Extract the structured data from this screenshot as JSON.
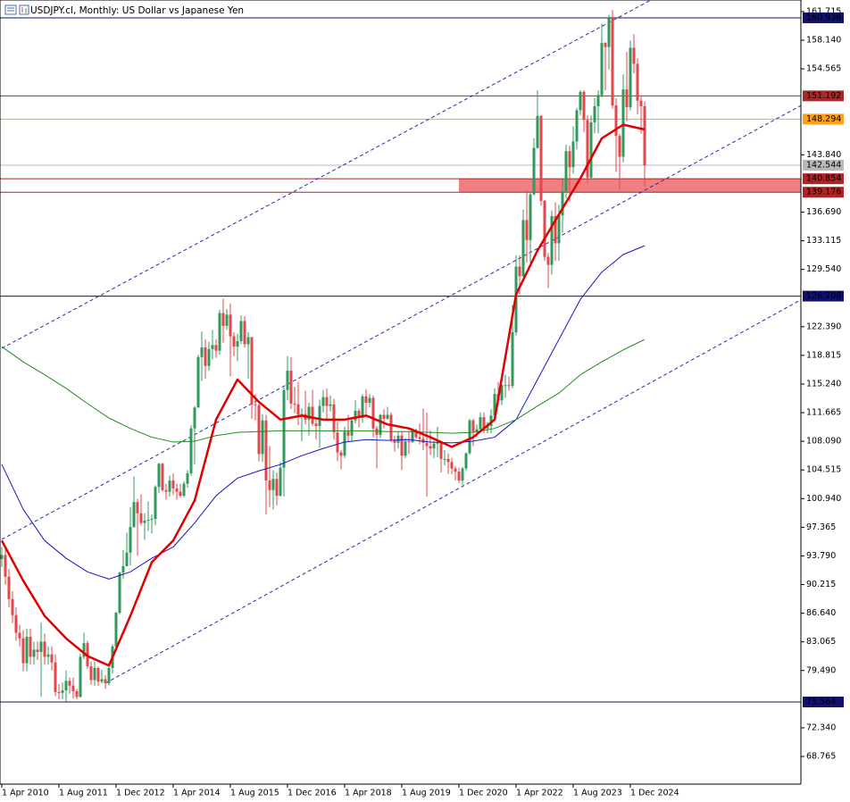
{
  "chart_data": {
    "type": "candlestick",
    "title": "USDJPY.cl, Monthly:  US Dollar vs Japanese Yen",
    "categories": [
      "1 Apr 2010",
      null,
      null,
      null,
      null,
      null,
      null,
      null,
      null,
      null,
      null,
      null,
      null,
      null,
      null,
      null,
      "1 Aug 2011",
      null,
      null,
      null,
      null,
      null,
      null,
      null,
      null,
      null,
      null,
      null,
      null,
      null,
      null,
      null,
      "1 Dec 2012",
      null,
      null,
      null,
      null,
      null,
      null,
      null,
      null,
      null,
      null,
      null,
      null,
      null,
      null,
      null,
      "1 Apr 2014",
      null,
      null,
      null,
      null,
      null,
      null,
      null,
      null,
      null,
      null,
      null,
      null,
      null,
      null,
      null,
      "1 Aug 2015",
      null,
      null,
      null,
      null,
      null,
      null,
      null,
      null,
      null,
      null,
      null,
      null,
      null,
      null,
      null,
      "1 Dec 2016",
      null,
      null,
      null,
      null,
      null,
      null,
      null,
      null,
      null,
      null,
      null,
      null,
      null,
      null,
      null,
      "1 Apr 2018",
      null,
      null,
      null,
      null,
      null,
      null,
      null,
      null,
      null,
      null,
      null,
      null,
      null,
      null,
      null,
      "1 Aug 2019",
      null,
      null,
      null,
      null,
      null,
      null,
      null,
      null,
      null,
      null,
      null,
      null,
      null,
      null,
      null,
      "1 Dec 2020",
      null,
      null,
      null,
      null,
      null,
      null,
      null,
      null,
      null,
      null,
      null,
      null,
      null,
      null,
      null,
      "1 Apr 2022",
      null,
      null,
      null,
      null,
      null,
      null,
      null,
      null,
      null,
      null,
      null,
      null,
      null,
      null,
      null,
      "1 Aug 2023",
      null,
      null,
      null,
      null,
      null,
      null,
      null,
      null,
      null,
      null,
      null,
      null,
      null,
      null,
      null,
      "1 Dec 2024",
      null,
      null,
      null,
      null
    ],
    "open": [
      93.4,
      93.9,
      91.2,
      88.4,
      86.4,
      84.2,
      83.5,
      80.4,
      83.7,
      81.2,
      82.1,
      81.8,
      83.1,
      81.2,
      81.5,
      80.5,
      76.8,
      76.7,
      77.0,
      78.2,
      77.6,
      76.9,
      76.2,
      81.2,
      82.9,
      80.0,
      78.3,
      79.8,
      78.1,
      78.4,
      77.9,
      79.8,
      82.5,
      86.7,
      91.7,
      92.5,
      94.2,
      97.4,
      100.5,
      99.1,
      97.9,
      98.2,
      98.3,
      98.4,
      102.4,
      105.3,
      102.0,
      101.8,
      103.2,
      102.2,
      101.8,
      101.3,
      102.8,
      104.1,
      109.7,
      112.3,
      118.6,
      119.8,
      117.5,
      119.6,
      120.1,
      119.4,
      124.1,
      122.5,
      123.9,
      121.2,
      119.9,
      120.6,
      123.1,
      120.2,
      121.1,
      112.7,
      112.6,
      106.5,
      110.7,
      103.2,
      102.0,
      103.4,
      101.3,
      104.8,
      114.5,
      116.9,
      112.8,
      112.7,
      111.4,
      111.5,
      110.8,
      112.4,
      110.3,
      110.0,
      112.5,
      113.6,
      112.5,
      112.7,
      109.2,
      106.7,
      106.3,
      109.3,
      108.8,
      110.7,
      111.9,
      111.0,
      113.7,
      112.9,
      113.5,
      109.7,
      108.9,
      111.4,
      110.9,
      111.4,
      108.3,
      107.9,
      108.8,
      106.3,
      108.1,
      108.0,
      109.5,
      108.6,
      108.4,
      107.9,
      107.5,
      107.2,
      107.8,
      107.9,
      105.9,
      105.9,
      105.5,
      104.7,
      104.3,
      103.2,
      104.7,
      106.6,
      110.7,
      109.3,
      109.6,
      111.1,
      109.7,
      110.0,
      111.3,
      114.0,
      113.2,
      115.1,
      115.1,
      115.0,
      121.7,
      129.9,
      128.7,
      135.7,
      133.2,
      138.9,
      144.7,
      148.7,
      138.1,
      131.1,
      130.1,
      136.2,
      132.8,
      136.3,
      139.3,
      144.3,
      142.3,
      145.5,
      149.4,
      151.7,
      148.2,
      141.0,
      147.9,
      149.9,
      151.3,
      157.8,
      157.3,
      160.9,
      150.0,
      146.2,
      143.6,
      152.0,
      149.8,
      157.2,
      155.2,
      150.6,
      149.9
    ],
    "high": [
      94.9,
      94.9,
      92.2,
      89.4,
      87.4,
      85.2,
      84.5,
      84.7,
      84.7,
      83.1,
      83.1,
      85.5,
      84.1,
      82.5,
      82.5,
      81.5,
      77.8,
      78.0,
      79.5,
      78.6,
      78.6,
      77.2,
      81.6,
      84.2,
      83.2,
      80.6,
      80.6,
      80.0,
      79.6,
      78.9,
      80.5,
      82.8,
      86.8,
      91.8,
      94.5,
      96.7,
      99.9,
      103.7,
      100.9,
      101.5,
      99.1,
      100.6,
      99.0,
      102.6,
      105.4,
      105.4,
      102.8,
      103.8,
      104.1,
      102.8,
      102.8,
      103.1,
      104.5,
      110.1,
      112.5,
      118.9,
      121.8,
      120.8,
      120.5,
      122.0,
      120.8,
      124.5,
      125.9,
      124.6,
      125.3,
      121.7,
      121.5,
      123.8,
      123.7,
      121.7,
      121.1,
      114.0,
      112.8,
      111.5,
      111.4,
      107.5,
      104.5,
      104.2,
      105.5,
      114.8,
      118.7,
      118.6,
      114.9,
      115.5,
      112.2,
      114.4,
      112.9,
      114.5,
      111.1,
      113.3,
      114.5,
      114.7,
      113.8,
      113.4,
      110.5,
      107.0,
      109.9,
      111.4,
      110.9,
      113.2,
      112.2,
      114.0,
      114.6,
      114.0,
      113.8,
      110.0,
      111.5,
      112.1,
      112.4,
      111.7,
      108.8,
      109.3,
      109.3,
      108.5,
      109.3,
      109.7,
      109.7,
      110.3,
      112.2,
      111.7,
      109.4,
      108.1,
      109.9,
      107.9,
      107.0,
      106.6,
      106.0,
      105.0,
      104.8,
      104.9,
      106.7,
      110.9,
      110.9,
      110.2,
      111.7,
      111.7,
      110.5,
      112.1,
      114.7,
      115.5,
      115.2,
      116.4,
      116.2,
      125.1,
      131.3,
      131.3,
      137.0,
      139.4,
      139.1,
      145.9,
      151.9,
      148.8,
      138.2,
      131.6,
      136.9,
      137.9,
      137.6,
      140.9,
      145.1,
      145.0,
      147.4,
      149.7,
      151.9,
      151.9,
      148.8,
      148.8,
      150.9,
      151.9,
      160.2,
      157.9,
      161.3,
      161.9,
      150.9,
      146.5,
      153.9,
      156.7,
      158.1,
      158.9,
      155.9,
      151.3,
      150.5
    ],
    "low": [
      92.4,
      90.2,
      87.4,
      85.4,
      83.2,
      82.5,
      79.4,
      79.4,
      80.2,
      80.2,
      80.8,
      76.2,
      80.2,
      80.2,
      79.5,
      76.3,
      75.9,
      75.9,
      75.6,
      76.6,
      76.0,
      75.9,
      76.1,
      80.9,
      79.7,
      77.7,
      77.6,
      77.6,
      77.9,
      77.2,
      77.6,
      79.1,
      82.1,
      86.5,
      90.9,
      92.6,
      92.6,
      97.3,
      93.8,
      97.6,
      95.8,
      96.9,
      96.6,
      97.6,
      101.6,
      101.8,
      100.8,
      101.2,
      101.4,
      100.8,
      101.1,
      101.1,
      102.3,
      103.8,
      105.2,
      112.3,
      115.6,
      115.9,
      116.9,
      118.3,
      118.5,
      118.9,
      120.4,
      122.0,
      116.2,
      118.7,
      118.1,
      120.2,
      119.8,
      115.9,
      110.9,
      110.7,
      105.6,
      105.5,
      99.0,
      99.9,
      99.6,
      100.1,
      101.2,
      101.2,
      113.2,
      112.1,
      111.6,
      110.1,
      108.1,
      110.2,
      108.8,
      110.0,
      108.3,
      107.3,
      111.7,
      110.8,
      111.8,
      108.3,
      105.6,
      104.6,
      106.0,
      108.1,
      108.1,
      110.3,
      109.8,
      110.4,
      111.4,
      112.3,
      108.6,
      104.7,
      108.5,
      109.7,
      110.8,
      108.0,
      106.8,
      107.2,
      104.5,
      106.0,
      106.5,
      107.9,
      108.4,
      107.7,
      107.0,
      101.2,
      106.4,
      106.0,
      106.1,
      104.2,
      105.1,
      104.0,
      104.0,
      103.2,
      102.9,
      102.6,
      104.4,
      106.4,
      107.5,
      108.6,
      109.2,
      109.1,
      109.1,
      109.1,
      111.0,
      112.5,
      112.6,
      113.5,
      114.4,
      114.7,
      121.3,
      126.4,
      128.6,
      130.4,
      130.4,
      138.8,
      144.6,
      137.5,
      130.6,
      127.2,
      128.9,
      130.6,
      130.6,
      134.1,
      138.4,
      138.0,
      141.5,
      144.5,
      148.8,
      146.7,
      140.3,
      140.8,
      146.5,
      146.5,
      151.0,
      151.9,
      154.5,
      149.6,
      141.7,
      139.6,
      142.9,
      148.0,
      149.4,
      154.0,
      148.9,
      146.5,
      139.9
    ],
    "close": [
      93.9,
      91.2,
      88.4,
      86.4,
      84.2,
      83.5,
      80.4,
      83.7,
      81.2,
      82.1,
      81.8,
      83.1,
      81.2,
      81.5,
      80.5,
      76.8,
      76.7,
      77.0,
      78.2,
      77.6,
      76.9,
      76.2,
      81.2,
      82.9,
      80.0,
      78.3,
      79.8,
      78.1,
      78.4,
      77.9,
      79.8,
      82.5,
      86.7,
      91.7,
      92.5,
      94.2,
      97.4,
      100.5,
      99.1,
      97.9,
      98.2,
      98.3,
      98.4,
      102.4,
      105.3,
      102.0,
      101.8,
      103.2,
      102.2,
      101.8,
      101.3,
      102.8,
      104.1,
      109.7,
      112.3,
      118.6,
      119.8,
      117.5,
      119.6,
      120.1,
      119.4,
      124.1,
      122.5,
      123.9,
      121.2,
      119.9,
      120.6,
      123.1,
      120.2,
      121.1,
      112.7,
      112.6,
      106.5,
      110.7,
      103.2,
      102.0,
      103.4,
      101.3,
      104.8,
      114.5,
      116.9,
      112.8,
      112.7,
      111.4,
      111.5,
      110.8,
      112.4,
      110.3,
      110.0,
      112.5,
      113.6,
      112.5,
      112.7,
      109.2,
      106.7,
      106.3,
      109.3,
      108.8,
      110.7,
      111.9,
      111.0,
      113.7,
      112.9,
      113.5,
      109.7,
      108.9,
      111.4,
      110.9,
      111.4,
      108.3,
      107.9,
      108.8,
      106.3,
      108.1,
      108.0,
      109.5,
      108.6,
      108.4,
      107.9,
      107.5,
      107.2,
      107.8,
      107.9,
      105.9,
      105.9,
      105.5,
      104.7,
      104.3,
      103.2,
      104.7,
      106.6,
      110.7,
      109.3,
      109.6,
      111.1,
      109.7,
      110.0,
      111.3,
      114.0,
      113.2,
      115.1,
      115.1,
      115.0,
      121.7,
      129.9,
      128.7,
      135.7,
      133.2,
      138.9,
      144.7,
      148.7,
      138.1,
      131.1,
      130.1,
      136.2,
      132.8,
      136.3,
      139.3,
      144.3,
      142.3,
      145.5,
      149.4,
      151.7,
      148.2,
      141.0,
      147.9,
      149.9,
      151.3,
      157.8,
      157.3,
      160.9,
      150.0,
      146.2,
      143.6,
      152.0,
      149.8,
      157.2,
      155.2,
      150.6,
      149.9,
      142.54
    ],
    "up_color": "#2f9a5c",
    "down_color": "#e2474b",
    "ylim": [
      65.31,
      163.16
    ],
    "yticks": [
      161.715,
      {
        "value": 158.14,
        "label": "158.140"
      },
      154.565,
      {
        "value": 143.84,
        "label": "143.840"
      },
      {
        "value": 136.69,
        "label": "136.690"
      },
      133.115,
      {
        "value": 129.54,
        "label": "129.540"
      },
      {
        "value": 122.39,
        "label": "122.390"
      },
      118.815,
      {
        "value": 115.24,
        "label": "115.240"
      },
      111.665,
      {
        "value": 108.09,
        "label": "108.090"
      },
      104.515,
      {
        "value": 100.94,
        "label": "100.940"
      },
      97.365,
      {
        "value": 93.79,
        "label": "93.790"
      },
      90.215,
      {
        "value": 86.64,
        "label": "86.640"
      },
      83.065,
      {
        "value": 79.49,
        "label": "79.490"
      },
      {
        "value": 72.34,
        "label": "72.340"
      },
      68.765
    ],
    "lines": [
      {
        "color": "#1515c8",
        "width": 1,
        "x": [
          "1 Apr 2010",
          "1 Oct 2010",
          "1 Apr 2011",
          "1 Oct 2011",
          "1 Apr 2012",
          "1 Oct 2012",
          "1 Apr 2013",
          "1 Oct 2013",
          "1 Apr 2014",
          "1 Oct 2014",
          "1 Apr 2015",
          "1 Oct 2015",
          "1 Apr 2016",
          "1 Oct 2016",
          "1 Apr 2017",
          "1 Oct 2017",
          "1 Apr 2018",
          "1 Oct 2018",
          "1 Apr 2019",
          "1 Oct 2019",
          "1 Apr 2020",
          "1 Oct 2020",
          "1 Apr 2021",
          "1 Oct 2021",
          "1 Apr 2022",
          "1 Oct 2022",
          "1 Apr 2023",
          "1 Oct 2023",
          "1 Apr 2024",
          "1 Oct 2024",
          "1 Apr 2025"
        ],
        "values": [
          105.2,
          99.6,
          95.7,
          93.5,
          91.8,
          90.9,
          91.8,
          93.5,
          94.9,
          97.9,
          101.3,
          103.5,
          104.4,
          105.2,
          106.3,
          107.2,
          108.0,
          108.3,
          108.2,
          108.3,
          108.0,
          107.9,
          108.1,
          108.6,
          110.8,
          115.8,
          120.8,
          125.8,
          129.2,
          131.4,
          132.5
        ]
      },
      {
        "color": "#1e8c1e",
        "width": 1,
        "x": [
          "1 Apr 2010",
          "1 Oct 2010",
          "1 Apr 2011",
          "1 Oct 2011",
          "1 Apr 2012",
          "1 Oct 2012",
          "1 Apr 2013",
          "1 Oct 2013",
          "1 Apr 2014",
          "1 Oct 2014",
          "1 Apr 2015",
          "1 Oct 2015",
          "1 Apr 2016",
          "1 Oct 2016",
          "1 Apr 2017",
          "1 Oct 2017",
          "1 Apr 2018",
          "1 Oct 2018",
          "1 Apr 2019",
          "1 Oct 2019",
          "1 Apr 2020",
          "1 Oct 2020",
          "1 Apr 2021",
          "1 Oct 2021",
          "1 Apr 2022",
          "1 Oct 2022",
          "1 Apr 2023",
          "1 Oct 2023",
          "1 Apr 2024",
          "1 Oct 2024",
          "1 Apr 2025"
        ],
        "values": [
          119.9,
          118.0,
          116.4,
          114.7,
          112.8,
          111.0,
          109.7,
          108.6,
          108.0,
          108.1,
          108.8,
          109.2,
          109.3,
          109.4,
          109.4,
          109.4,
          109.4,
          109.4,
          109.3,
          109.3,
          109.2,
          109.1,
          109.2,
          109.7,
          110.8,
          112.5,
          114.1,
          116.4,
          118.0,
          119.5,
          120.8
        ]
      },
      {
        "color": "#e00000",
        "width": 2.5,
        "x": [
          "1 Apr 2010",
          "1 Oct 2010",
          "1 Apr 2011",
          "1 Oct 2011",
          "1 Apr 2012",
          "1 Oct 2012",
          "1 Apr 2013",
          "1 Oct 2013",
          "1 Apr 2014",
          "1 Oct 2014",
          "1 Apr 2015",
          "1 Oct 2015",
          "1 Apr 2016",
          "1 Oct 2016",
          "1 Apr 2017",
          "1 Oct 2017",
          "1 Apr 2018",
          "1 Oct 2018",
          "1 Apr 2019",
          "1 Oct 2019",
          "1 Apr 2020",
          "1 Oct 2020",
          "1 Apr 2021",
          "1 Oct 2021",
          "1 Apr 2022",
          "1 Oct 2022",
          "1 Apr 2023",
          "1 Oct 2023",
          "1 Apr 2024",
          "1 Oct 2024",
          "1 Apr 2025"
        ],
        "values": [
          95.7,
          90.7,
          86.3,
          83.5,
          81.3,
          80.1,
          86.3,
          93.0,
          95.7,
          100.7,
          110.8,
          115.8,
          113.0,
          110.8,
          111.3,
          110.8,
          110.8,
          111.3,
          110.2,
          109.7,
          108.6,
          107.4,
          108.6,
          110.8,
          126.4,
          131.9,
          136.4,
          140.9,
          145.9,
          147.6,
          147.0
        ]
      }
    ],
    "channels": [
      {
        "color": "#2a2aa8",
        "x": [
          "1 Apr 2010",
          "1 Apr 2023"
        ],
        "values": [
          119.7,
          157.0
        ]
      },
      {
        "color": "#2a2aa8",
        "x": [
          "1 Apr 2010",
          "1 Apr 2023"
        ],
        "values": [
          95.85,
          133.6
        ]
      },
      {
        "color": "#2a2aa8",
        "x": [
          "1 Sep 2012",
          "1 Apr 2025"
        ],
        "values": [
          77.9,
          115.0
        ]
      }
    ],
    "zone": {
      "x": "1 Dec 2020",
      "values": [
        139.176,
        140.854
      ],
      "color": "#ef7f80"
    },
    "levels": [
      {
        "value": 160.936,
        "color": "#10106e"
      },
      {
        "value": 151.192,
        "color": "#a52a2a"
      },
      {
        "value": 148.294,
        "color": "#ff9f1a"
      },
      {
        "value": 142.544,
        "color": "#b8b8b8"
      },
      {
        "value": 140.854,
        "color": "#b22222"
      },
      {
        "value": 139.176,
        "color": "#b22222"
      },
      {
        "value": 126.208,
        "color": "#10106e"
      },
      {
        "value": 75.564,
        "color": "#10106e"
      }
    ]
  }
}
